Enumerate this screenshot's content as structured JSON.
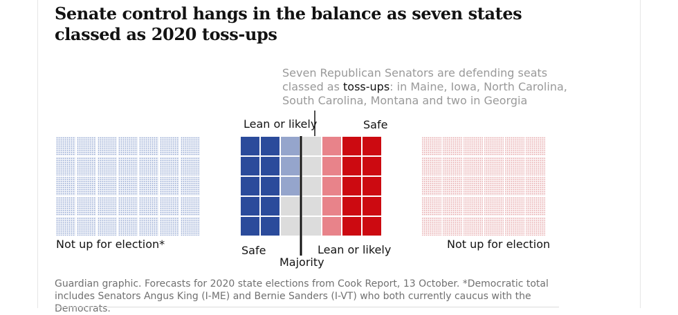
{
  "headline": "Senate control hangs in the balance as seven states classed as 2020 toss-ups",
  "annotation": {
    "before": "Seven Republican Senators are defending seats classed as ",
    "highlight": "toss-ups",
    "after": ": in Maine, Iowa, North Carolina, South Carolina, Montana and two in Georgia"
  },
  "labels": {
    "dem_not_up": "Not up for election*",
    "rep_not_up": "Not up for election",
    "lean_top": "Lean or likely",
    "safe_top": "Safe",
    "safe_bottom": "Safe",
    "lean_bottom": "Lean or likely",
    "majority": "Majority"
  },
  "colors": {
    "dem_safe": "#2b4b9b",
    "dem_lean": "#95a5cc",
    "toss_up": "#dcdcdc",
    "rep_lean": "#e8838a",
    "rep_safe": "#cc0a11",
    "dem_not_up": "#d3dbeb",
    "rep_not_up": "#f1d6d6",
    "majority_line": "#121212"
  },
  "chart_data": {
    "type": "waffle",
    "unit": "Senate seats",
    "groups": [
      {
        "name": "Not up for election*",
        "party": "Democrat",
        "seats": 35
      },
      {
        "name": "Safe",
        "party": "Democrat",
        "seats": 10
      },
      {
        "name": "Lean or likely",
        "party": "Democrat",
        "seats": 3
      },
      {
        "name": "toss-ups",
        "party": "",
        "seats": 7
      },
      {
        "name": "Lean or likely",
        "party": "Republican",
        "seats": 5
      },
      {
        "name": "Safe",
        "party": "Republican",
        "seats": 10
      },
      {
        "name": "Not up for election",
        "party": "Republican",
        "seats": 30
      }
    ],
    "majority": "Majority"
  },
  "footnote": "Guardian graphic. Forecasts for 2020 state elections from Cook Report, 13 October. *Democratic total includes Senators Angus King (I-ME) and Bernie Sanders (I-VT) who both currently caucus with the Democrats."
}
